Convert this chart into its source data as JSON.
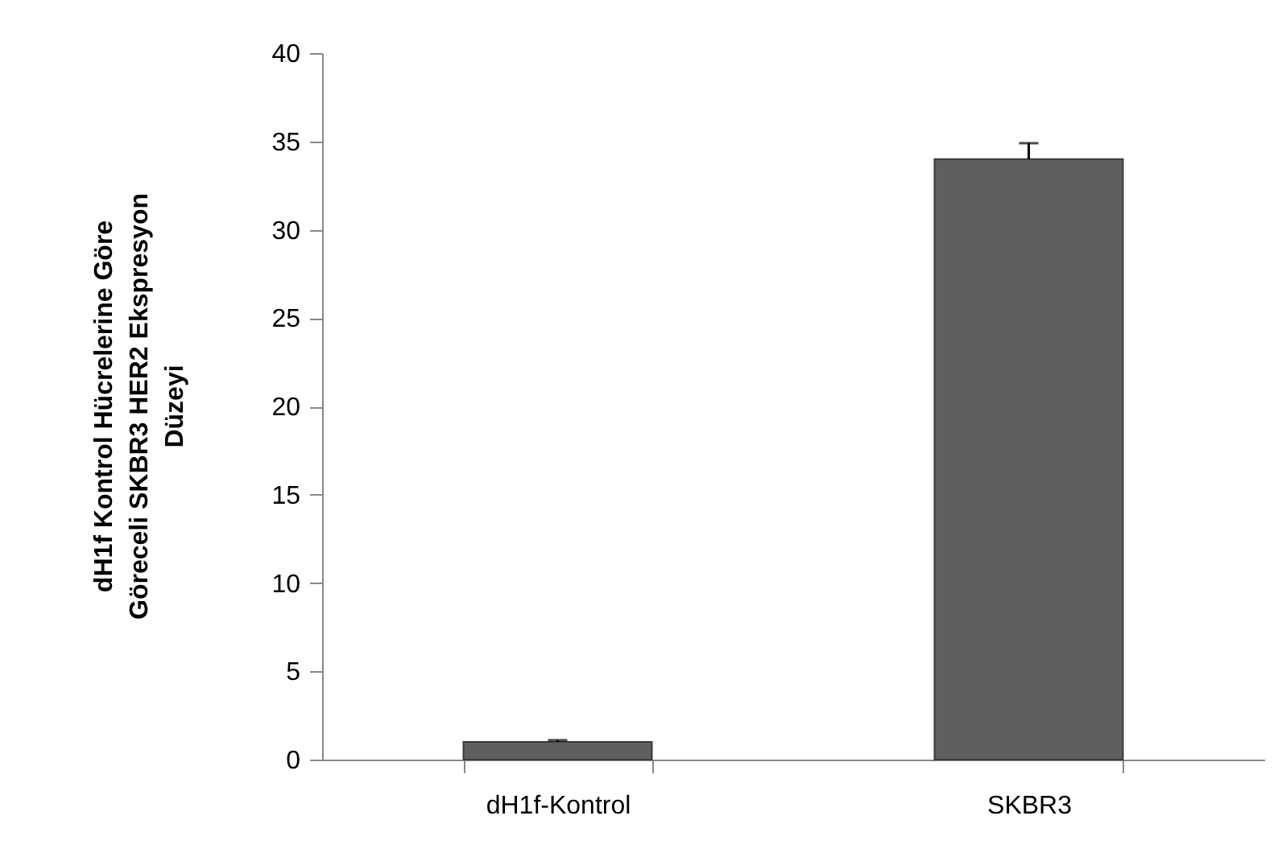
{
  "chart_data": {
    "type": "bar",
    "ylabel": "dH1f Kontrol Hücrelerine Göre Göreceli SKBR3 HER2 Ekspresyon Düzeyi",
    "categories": [
      "dH1f-Kontrol",
      "SKBR3"
    ],
    "values": [
      1,
      34
    ],
    "errors": [
      [
        1,
        1.1
      ],
      [
        34,
        34.9
      ]
    ],
    "color": "#5f5f5f",
    "ylim": [
      0,
      40
    ],
    "yticks": [
      0,
      5,
      10,
      15,
      20,
      25,
      30,
      35,
      40
    ],
    "grid": false
  }
}
